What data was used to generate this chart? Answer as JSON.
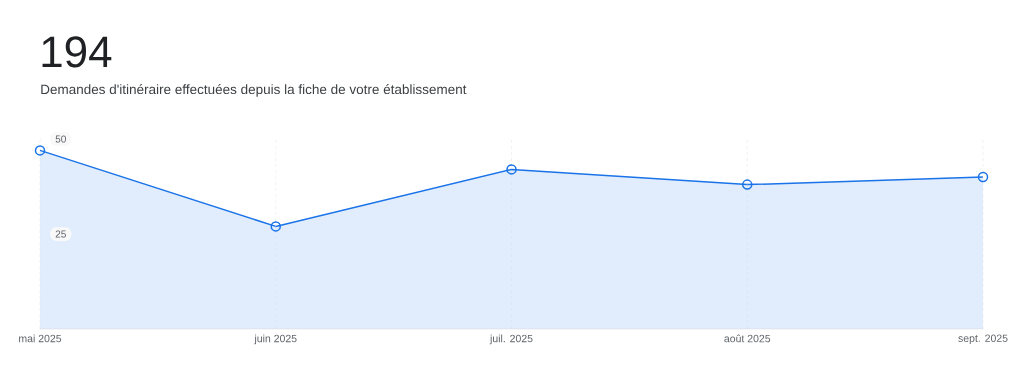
{
  "chart_data": {
    "type": "area",
    "title": "194",
    "subtitle": "Demandes d'itinéraire effectuées depuis la fiche de votre établissement",
    "categories": [
      "mai 2025",
      "juin 2025",
      "juil. 2025",
      "août 2025",
      "sept. 2025"
    ],
    "values": [
      47,
      27,
      42,
      38,
      40
    ],
    "color": "#1a73e8",
    "ylim": [
      0,
      50
    ],
    "yticks": [
      25,
      50
    ],
    "grid": "x",
    "marker": "circle"
  }
}
